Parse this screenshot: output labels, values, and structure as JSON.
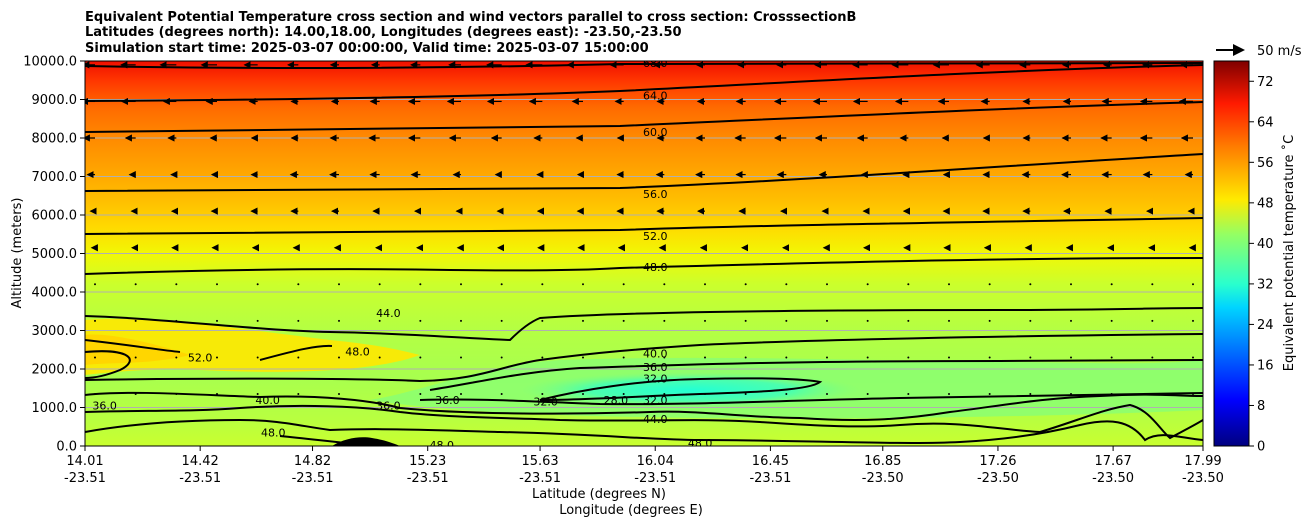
{
  "chart_data": {
    "type": "contour cross-section",
    "title_lines": [
      "Equivalent Potential Temperature cross section and wind vectors parallel to cross section: CrosssectionB",
      "Latitudes (degrees north): 14.00,18.00, Longitudes (degrees east): -23.50,-23.50",
      "Simulation start time: 2025-03-07 00:00:00, Valid time: 2025-03-07 15:00:00"
    ],
    "ylabel": "Altitude (meters)",
    "xlabel_lat": "Latitude (degrees N)",
    "xlabel_lon": "Longitude (degrees E)",
    "ylim": [
      0,
      10000
    ],
    "yticks": [
      "0.0",
      "1000.0",
      "2000.0",
      "3000.0",
      "4000.0",
      "5000.0",
      "6000.0",
      "7000.0",
      "8000.0",
      "9000.0",
      "10000.0"
    ],
    "y_values": [
      0,
      1000,
      2000,
      3000,
      4000,
      5000,
      6000,
      7000,
      8000,
      9000,
      10000
    ],
    "x_latitudes": [
      "14.01",
      "14.42",
      "14.82",
      "15.23",
      "15.63",
      "16.04",
      "16.45",
      "16.85",
      "17.26",
      "17.67",
      "17.99"
    ],
    "x_longitudes": [
      "-23.51",
      "-23.51",
      "-23.51",
      "-23.51",
      "-23.51",
      "-23.51",
      "-23.51",
      "-23.50",
      "-23.50",
      "-23.50",
      "-23.50"
    ],
    "lat_values": [
      14.01,
      14.42,
      14.82,
      15.23,
      15.63,
      16.04,
      16.45,
      16.85,
      17.26,
      17.67,
      17.99
    ],
    "colorbar": {
      "label": "Equivalent potential temperature ˚C",
      "range": [
        0,
        76
      ],
      "ticks": [
        "0",
        "8",
        "16",
        "24",
        "32",
        "40",
        "48",
        "56",
        "64",
        "72"
      ],
      "tick_values": [
        0,
        8,
        16,
        24,
        32,
        40,
        48,
        56,
        64,
        72
      ]
    },
    "quiver_key": {
      "label": "50 m/s",
      "value": 50
    },
    "contour_labels": [
      {
        "text": "68.0",
        "lat": 16.04,
        "alt": 9950
      },
      {
        "text": "64.0",
        "lat": 16.04,
        "alt": 9100
      },
      {
        "text": "60.0",
        "lat": 16.04,
        "alt": 8150
      },
      {
        "text": "56.0",
        "lat": 16.04,
        "alt": 6550
      },
      {
        "text": "52.0",
        "lat": 16.04,
        "alt": 5450
      },
      {
        "text": "48.0",
        "lat": 16.04,
        "alt": 4650
      },
      {
        "text": "44.0",
        "lat": 15.09,
        "alt": 3450
      },
      {
        "text": "52.0",
        "lat": 14.42,
        "alt": 2300
      },
      {
        "text": "48.0",
        "lat": 14.98,
        "alt": 2450
      },
      {
        "text": "40.0",
        "lat": 16.04,
        "alt": 2400
      },
      {
        "text": "36.0",
        "lat": 16.04,
        "alt": 2050
      },
      {
        "text": "32.0",
        "lat": 16.04,
        "alt": 1750
      },
      {
        "text": "32.0",
        "lat": 16.04,
        "alt": 1200
      },
      {
        "text": "44.0",
        "lat": 16.04,
        "alt": 700
      },
      {
        "text": "48.0",
        "lat": 16.2,
        "alt": 80
      },
      {
        "text": "40.0",
        "lat": 14.66,
        "alt": 1200
      },
      {
        "text": "48.0",
        "lat": 14.68,
        "alt": 350
      },
      {
        "text": "36.0",
        "lat": 14.08,
        "alt": 1050
      },
      {
        "text": "36.0",
        "lat": 15.09,
        "alt": 1050
      },
      {
        "text": "36.0",
        "lat": 15.3,
        "alt": 1200
      },
      {
        "text": "32.0",
        "lat": 15.65,
        "alt": 1150
      },
      {
        "text": "28.0",
        "lat": 15.9,
        "alt": 1200
      },
      {
        "text": "48.0",
        "lat": 15.28,
        "alt": 30
      }
    ]
  }
}
